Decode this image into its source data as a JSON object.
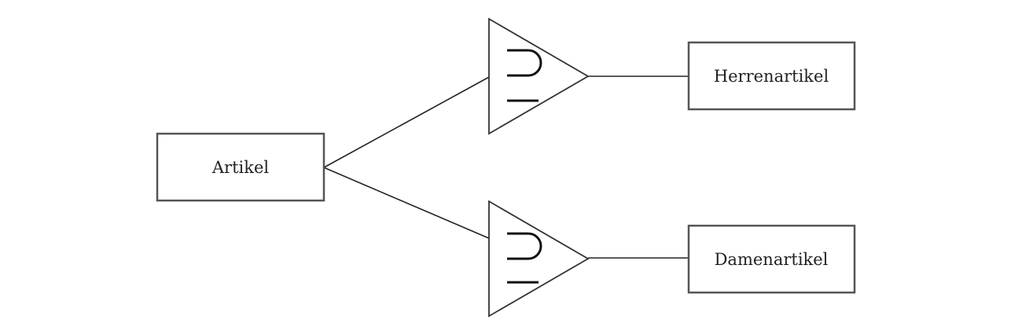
{
  "diagram": {
    "supertype": {
      "label": "Artikel"
    },
    "subtypes": [
      {
        "label": "Herrenartikel"
      },
      {
        "label": "Damenartikel"
      }
    ],
    "relation_symbol": "subset-triangle",
    "colors": {
      "box_border": "#555555",
      "line": "#222222",
      "background": "#ffffff"
    }
  }
}
